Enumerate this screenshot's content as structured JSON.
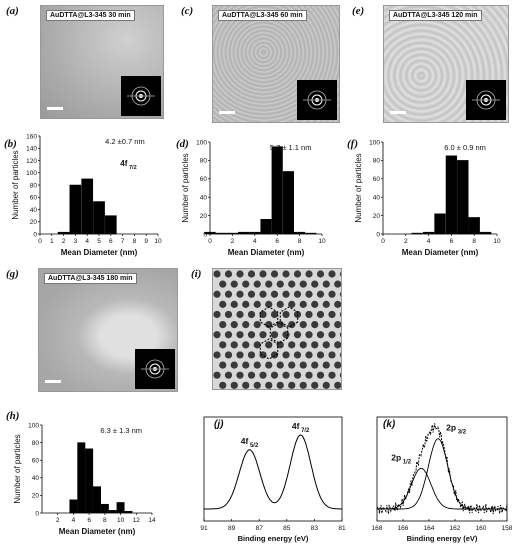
{
  "panels": {
    "a": {
      "letter": "(a)",
      "label": "AuDTTA@L3-345 30 min"
    },
    "c": {
      "letter": "(c)",
      "label": "AuDTTA@L3-345 60 min"
    },
    "e": {
      "letter": "(e)",
      "label": "AuDTTA@L3-345 120 min"
    },
    "g": {
      "letter": "(g)",
      "label": "AuDTTA@L3-345 180 min"
    },
    "i": {
      "letter": "(i)"
    },
    "b": {
      "letter": "(b)"
    },
    "d": {
      "letter": "(d)"
    },
    "f": {
      "letter": "(f)"
    },
    "h": {
      "letter": "(h)"
    },
    "j": {
      "letter": "(j)"
    },
    "k": {
      "letter": "(k)"
    }
  },
  "histogram_axes": {
    "ylabel": "Number of particles",
    "xlabel": "Mean Diameter (nm)"
  },
  "colors": {
    "bar": "#000000",
    "tem_a": "#bdbdbd",
    "tem_c": "#c8c8c8",
    "tem_e": "#d6d6d6",
    "tem_g": "#cfcfcf"
  },
  "chart_data": [
    {
      "id": "b",
      "type": "bar",
      "annotation": "4.2 ±0.7 nm",
      "overlay_text": "4f 7/2",
      "x": [
        2,
        3,
        4,
        5,
        6
      ],
      "values": [
        3,
        80,
        90,
        53,
        30
      ],
      "xlim": [
        0,
        10
      ],
      "ylim": [
        0,
        160
      ],
      "xticks": [
        "0",
        "1",
        "2",
        "3",
        "4",
        "5",
        "6",
        "7",
        "8",
        "9",
        "10"
      ],
      "yticks": [
        "0",
        "20",
        "40",
        "60",
        "80",
        "100",
        "120",
        "140",
        "160"
      ]
    },
    {
      "id": "d",
      "type": "bar",
      "annotation": "5.7 ± 1.1 nm",
      "x": [
        0,
        1,
        2,
        3,
        4,
        5,
        6,
        7,
        8,
        9
      ],
      "values": [
        2,
        1,
        1,
        2,
        2,
        16,
        95,
        68,
        2,
        1
      ],
      "xlim": [
        0,
        10
      ],
      "ylim": [
        0,
        100
      ],
      "xticks": [
        "0",
        "2",
        "4",
        "6",
        "8",
        "10"
      ],
      "yticks": [
        "0",
        "20",
        "40",
        "60",
        "80",
        "100"
      ]
    },
    {
      "id": "f",
      "type": "bar",
      "annotation": "6.0 ± 0.9 nm",
      "x": [
        3,
        4,
        5,
        6,
        7,
        8,
        9
      ],
      "values": [
        1,
        2,
        22,
        85,
        80,
        18,
        2
      ],
      "xlim": [
        0,
        10
      ],
      "ylim": [
        0,
        100
      ],
      "xticks": [
        "0",
        "2",
        "4",
        "6",
        "8",
        "10"
      ],
      "yticks": [
        "0",
        "20",
        "40",
        "60",
        "80",
        "100"
      ]
    },
    {
      "id": "h",
      "type": "bar",
      "annotation": "6.3 ± 1.3 nm",
      "x": [
        4,
        5,
        6,
        7,
        8,
        9,
        10,
        11
      ],
      "values": [
        15,
        80,
        73,
        30,
        10,
        3,
        12,
        2
      ],
      "xlim": [
        0,
        14
      ],
      "ylim": [
        0,
        100
      ],
      "xticks": [
        "2",
        "4",
        "6",
        "8",
        "10",
        "12",
        "14"
      ],
      "yticks": [
        "0",
        "20",
        "40",
        "60",
        "80",
        "100"
      ]
    },
    {
      "id": "j",
      "type": "line",
      "xlabel": "Binding energy (eV)",
      "xticks": [
        "91",
        "89",
        "87",
        "85",
        "83",
        "81"
      ],
      "xlim": [
        91,
        81
      ],
      "peaks": [
        {
          "center": 87.7,
          "label": "4f 5/2",
          "height": 0.8
        },
        {
          "center": 84.0,
          "label": "4f 7/2",
          "height": 1.0
        }
      ]
    },
    {
      "id": "k",
      "type": "line",
      "xlabel": "Binding energy (eV)",
      "xticks": [
        "168",
        "166",
        "164",
        "162",
        "160",
        "158"
      ],
      "xlim": [
        168,
        158
      ],
      "peaks": [
        {
          "center": 164.6,
          "label": "2p 1/2",
          "height": 0.55
        },
        {
          "center": 163.3,
          "label": "2p 3/2",
          "height": 0.95
        }
      ]
    }
  ]
}
